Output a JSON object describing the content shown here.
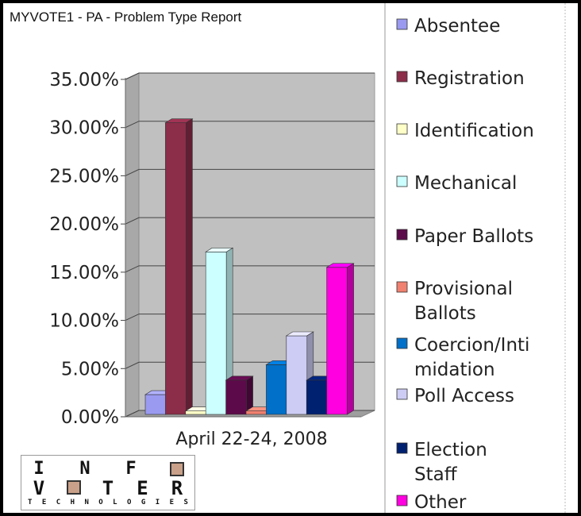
{
  "chart_data": {
    "type": "bar",
    "title": "MYVOTE1 - PA - Problem Type Report",
    "category": "April 22-24, 2008",
    "ylim": [
      0,
      0.35
    ],
    "yticks": [
      "0.00%",
      "5.00%",
      "10.00%",
      "15.00%",
      "20.00%",
      "25.00%",
      "30.00%",
      "35.00%"
    ],
    "grid": true,
    "legend_position": "right",
    "series": [
      {
        "name": "Absentee",
        "value": 0.023,
        "color": "#9a9af0"
      },
      {
        "name": "Registration",
        "value": 0.305,
        "color": "#8c2d4a"
      },
      {
        "name": "Identification",
        "value": 0.006,
        "color": "#ffffc8"
      },
      {
        "name": "Mechanical",
        "value": 0.171,
        "color": "#ccffff"
      },
      {
        "name": "Paper Ballots",
        "value": 0.038,
        "color": "#5c0a4a"
      },
      {
        "name": "Provisional Ballots",
        "value": 0.006,
        "color": "#f08070"
      },
      {
        "name": "Coercion/Intimidation",
        "value": 0.054,
        "color": "#0070c8"
      },
      {
        "name": "Poll Access",
        "value": 0.084,
        "color": "#ccccf5"
      },
      {
        "name": "Election Staff",
        "value": 0.038,
        "color": "#002070"
      },
      {
        "name": "Other",
        "value": 0.155,
        "color": "#ff00e0"
      }
    ]
  },
  "legend_lines": [
    [
      "Absentee"
    ],
    [
      "Registration"
    ],
    [
      "Identification"
    ],
    [
      "Mechanical"
    ],
    [
      "Paper Ballots"
    ],
    [
      "Provisional",
      "Ballots"
    ],
    [
      "Coercion/Inti",
      "midation"
    ],
    [
      "Poll Access"
    ],
    [
      "Election",
      "Staff"
    ],
    [
      "Other"
    ]
  ],
  "logo": {
    "row1": [
      "I",
      "N",
      "F",
      "O"
    ],
    "row2": [
      "V",
      "O",
      "T",
      "E",
      "R"
    ],
    "row3": [
      "T",
      "E",
      "C",
      "H",
      "N",
      "O",
      "L",
      "O",
      "G",
      "I",
      "E",
      "S"
    ]
  }
}
